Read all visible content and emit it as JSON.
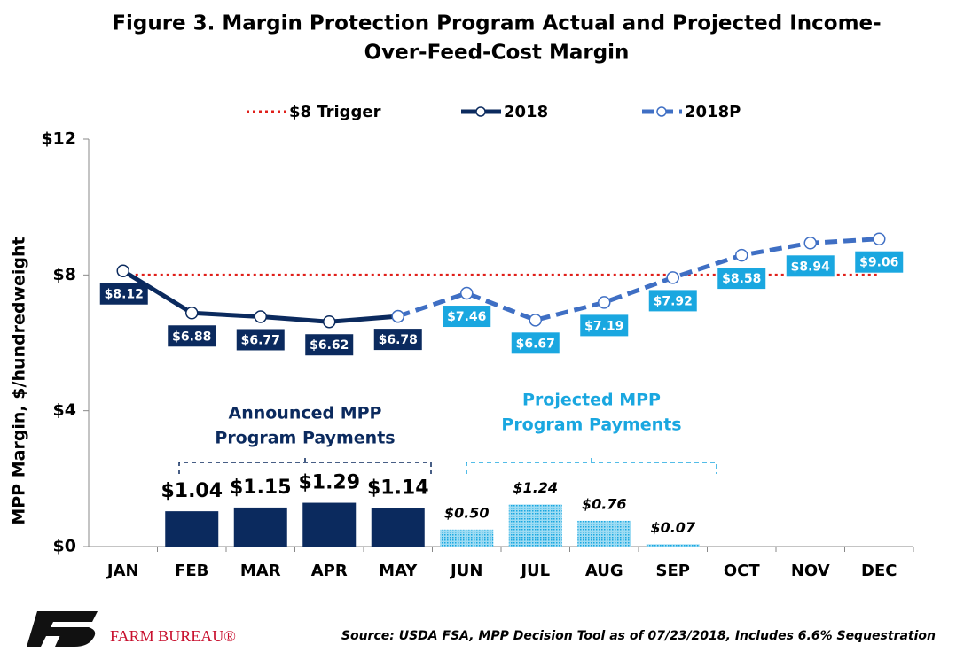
{
  "chart_data": {
    "type": "line",
    "title": [
      "Figure 3. Margin Protection Program Actual and Projected Income-",
      "Over-Feed-Cost Margin"
    ],
    "y_label": "MPP Margin, $/hundredweight",
    "categories": [
      "JAN",
      "FEB",
      "MAR",
      "APR",
      "MAY",
      "JUN",
      "JUL",
      "AUG",
      "SEP",
      "OCT",
      "NOV",
      "DEC"
    ],
    "ylim": [
      0,
      12
    ],
    "yticks": [
      {
        "value": 0,
        "label": "$0"
      },
      {
        "value": 4,
        "label": "$4"
      },
      {
        "value": 8,
        "label": "$8"
      },
      {
        "value": 12,
        "label": "$12"
      }
    ],
    "series": [
      {
        "name": "$8 Trigger",
        "type": "line",
        "style": "dotted",
        "color": "#e0201b",
        "values": [
          8,
          8,
          8,
          8,
          8,
          8,
          8,
          8,
          8,
          8,
          8,
          8
        ]
      },
      {
        "name": "2018",
        "type": "line",
        "style": "solid",
        "color": "#0b2a5e",
        "values": [
          8.12,
          6.88,
          6.77,
          6.62,
          6.78,
          null,
          null,
          null,
          null,
          null,
          null,
          null
        ],
        "value_labels": [
          "$8.12",
          "$6.88",
          "$6.77",
          "$6.62",
          "$6.78",
          null,
          null,
          null,
          null,
          null,
          null,
          null
        ]
      },
      {
        "name": "2018P",
        "type": "line",
        "style": "dashed",
        "color": "#3f6fc4",
        "label_color": "#1aa7e0",
        "values": [
          null,
          null,
          null,
          null,
          6.78,
          7.46,
          6.67,
          7.19,
          7.92,
          8.58,
          8.94,
          9.06
        ],
        "value_labels": [
          null,
          null,
          null,
          null,
          null,
          "$7.46",
          "$6.67",
          "$7.19",
          "$7.92",
          "$8.58",
          "$8.94",
          "$9.06"
        ]
      },
      {
        "type": "bar",
        "style": "solid",
        "color": "#0b2a5e",
        "values": [
          null,
          1.04,
          1.15,
          1.29,
          1.14,
          null,
          null,
          null,
          null,
          null,
          null,
          null
        ],
        "value_labels": [
          null,
          "$1.04",
          "$1.15",
          "$1.29",
          "$1.14",
          null,
          null,
          null,
          null,
          null,
          null,
          null
        ]
      },
      {
        "type": "bar",
        "style": "dotted",
        "color": "#38b4e4",
        "values": [
          null,
          null,
          null,
          null,
          null,
          0.5,
          1.24,
          0.76,
          0.07,
          null,
          null,
          null
        ],
        "value_labels": [
          null,
          null,
          null,
          null,
          null,
          "$0.50",
          "$1.24",
          "$0.76",
          "$0.07",
          null,
          null,
          null
        ]
      }
    ],
    "annotations": [
      {
        "lines": [
          "Announced MPP",
          "Program  Payments"
        ],
        "color": "#0b2a5e"
      },
      {
        "lines": [
          "Projected MPP",
          "Program  Payments"
        ],
        "color": "#1aa7e0"
      }
    ],
    "source": "Source: USDA FSA, MPP Decision Tool as of 07/23/2018, Includes 6.6% Sequestration",
    "logo_text": "FARM BUREAU®"
  }
}
